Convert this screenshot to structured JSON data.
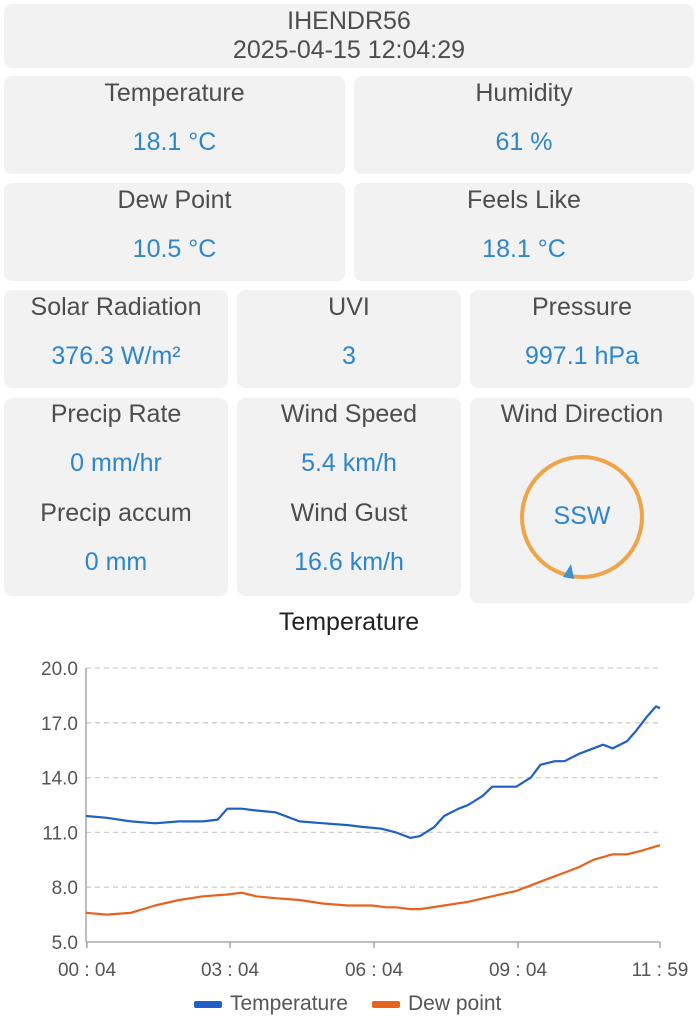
{
  "header": {
    "station": "IHENDR56",
    "timestamp": "2025-04-15 12:04:29"
  },
  "cards": {
    "temperature": {
      "label": "Temperature",
      "value": "18.1 °C"
    },
    "humidity": {
      "label": "Humidity",
      "value": "61 %"
    },
    "dew_point": {
      "label": "Dew Point",
      "value": "10.5 °C"
    },
    "feels_like": {
      "label": "Feels Like",
      "value": "18.1 °C"
    },
    "solar": {
      "label": "Solar Radiation",
      "value": "376.3 W/m²"
    },
    "uvi": {
      "label": "UVI",
      "value": "3"
    },
    "pressure": {
      "label": "Pressure",
      "value": "997.1 hPa"
    },
    "precip_rate": {
      "label": "Precip Rate",
      "value": "0 mm/hr"
    },
    "precip_accum": {
      "label": "Precip accum",
      "value": "0 mm"
    },
    "wind_speed": {
      "label": "Wind Speed",
      "value": "5.4 km/h"
    },
    "wind_gust": {
      "label": "Wind Gust",
      "value": "16.6 km/h"
    },
    "wind_direction": {
      "label": "Wind Direction",
      "value": "SSW"
    }
  },
  "colors": {
    "accent": "#2e86c9",
    "temperature": "#1f5fc8",
    "dew_point": "#e8621e",
    "compass": "#f0a44a"
  },
  "chart_data": {
    "type": "line",
    "title": "Temperature",
    "xlabel": "",
    "ylabel": "",
    "x_ticks": [
      "00 : 04",
      "03 : 04",
      "06 : 04",
      "09 : 04",
      "11 : 59"
    ],
    "y_ticks": [
      "20.0",
      "17.0",
      "14.0",
      "11.0",
      "8.0",
      "5.0"
    ],
    "xlim": [
      0.067,
      11.983
    ],
    "ylim": [
      5.0,
      20.0
    ],
    "grid": true,
    "legend": "bottom",
    "series": [
      {
        "name": "Temperature",
        "x": [
          0.067,
          0.5,
          1.0,
          1.5,
          2.0,
          2.5,
          2.8,
          3.0,
          3.3,
          3.6,
          4.0,
          4.5,
          5.0,
          5.5,
          5.8,
          6.2,
          6.5,
          6.8,
          7.0,
          7.3,
          7.5,
          7.8,
          8.0,
          8.3,
          8.5,
          9.0,
          9.3,
          9.5,
          9.8,
          10.0,
          10.3,
          10.5,
          10.8,
          11.0,
          11.3,
          11.5,
          11.7,
          11.9,
          11.983
        ],
        "y": [
          11.9,
          11.8,
          11.6,
          11.5,
          11.6,
          11.6,
          11.7,
          12.3,
          12.3,
          12.2,
          12.1,
          11.6,
          11.5,
          11.4,
          11.3,
          11.2,
          11.0,
          10.7,
          10.8,
          11.3,
          11.9,
          12.3,
          12.5,
          13.0,
          13.5,
          13.5,
          14.0,
          14.7,
          14.9,
          14.9,
          15.3,
          15.5,
          15.8,
          15.6,
          16.0,
          16.6,
          17.3,
          17.9,
          17.8
        ]
      },
      {
        "name": "Dew point",
        "x": [
          0.067,
          0.5,
          1.0,
          1.5,
          2.0,
          2.5,
          3.0,
          3.3,
          3.6,
          4.0,
          4.5,
          5.0,
          5.5,
          6.0,
          6.3,
          6.5,
          6.8,
          7.0,
          7.5,
          8.0,
          8.5,
          9.0,
          9.5,
          10.0,
          10.3,
          10.6,
          11.0,
          11.3,
          11.6,
          11.983
        ],
        "y": [
          6.6,
          6.5,
          6.6,
          7.0,
          7.3,
          7.5,
          7.6,
          7.7,
          7.5,
          7.4,
          7.3,
          7.1,
          7.0,
          7.0,
          6.9,
          6.9,
          6.8,
          6.8,
          7.0,
          7.2,
          7.5,
          7.8,
          8.3,
          8.8,
          9.1,
          9.5,
          9.8,
          9.8,
          10.0,
          10.3
        ]
      }
    ]
  }
}
